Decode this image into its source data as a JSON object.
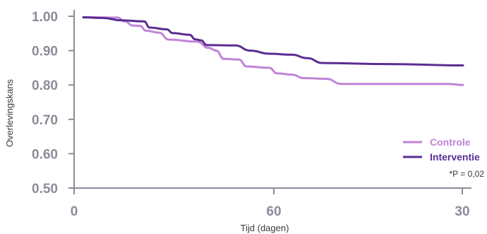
{
  "chart_data": {
    "type": "line",
    "xlabel": "Tijd (dagen)",
    "ylabel": "Overlevingskans",
    "ylim": [
      0.5,
      1.0
    ],
    "y_ticks": [
      "1.00",
      "0.90",
      "0.80",
      "0.70",
      "0.60",
      "0.50"
    ],
    "x_ticks": [
      "0",
      "60",
      "30"
    ],
    "grid": false,
    "legend_position": "bottom-right",
    "annotation": "*P = 0,02",
    "series": [
      {
        "name": "Controle",
        "color": "#c084d8",
        "points": [
          [
            0.0,
            0.997
          ],
          [
            0.03,
            0.997
          ],
          [
            0.09,
            0.996
          ],
          [
            0.11,
            0.985
          ],
          [
            0.13,
            0.973
          ],
          [
            0.15,
            0.972
          ],
          [
            0.165,
            0.958
          ],
          [
            0.2,
            0.952
          ],
          [
            0.225,
            0.932
          ],
          [
            0.3,
            0.926
          ],
          [
            0.33,
            0.908
          ],
          [
            0.35,
            0.9
          ],
          [
            0.37,
            0.876
          ],
          [
            0.41,
            0.874
          ],
          [
            0.43,
            0.854
          ],
          [
            0.49,
            0.85
          ],
          [
            0.51,
            0.834
          ],
          [
            0.55,
            0.83
          ],
          [
            0.58,
            0.82
          ],
          [
            0.64,
            0.818
          ],
          [
            0.68,
            0.803
          ],
          [
            0.96,
            0.803
          ],
          [
            1.0,
            0.8
          ]
        ]
      },
      {
        "name": "Interventie",
        "color": "#5a2d92",
        "points": [
          [
            0.0,
            0.997
          ],
          [
            0.05,
            0.995
          ],
          [
            0.1,
            0.988
          ],
          [
            0.16,
            0.985
          ],
          [
            0.175,
            0.967
          ],
          [
            0.22,
            0.962
          ],
          [
            0.235,
            0.951
          ],
          [
            0.28,
            0.946
          ],
          [
            0.295,
            0.933
          ],
          [
            0.31,
            0.93
          ],
          [
            0.325,
            0.916
          ],
          [
            0.4,
            0.915
          ],
          [
            0.44,
            0.9
          ],
          [
            0.49,
            0.891
          ],
          [
            0.55,
            0.888
          ],
          [
            0.59,
            0.878
          ],
          [
            0.63,
            0.864
          ],
          [
            0.8,
            0.861
          ],
          [
            1.0,
            0.857
          ]
        ]
      }
    ]
  }
}
